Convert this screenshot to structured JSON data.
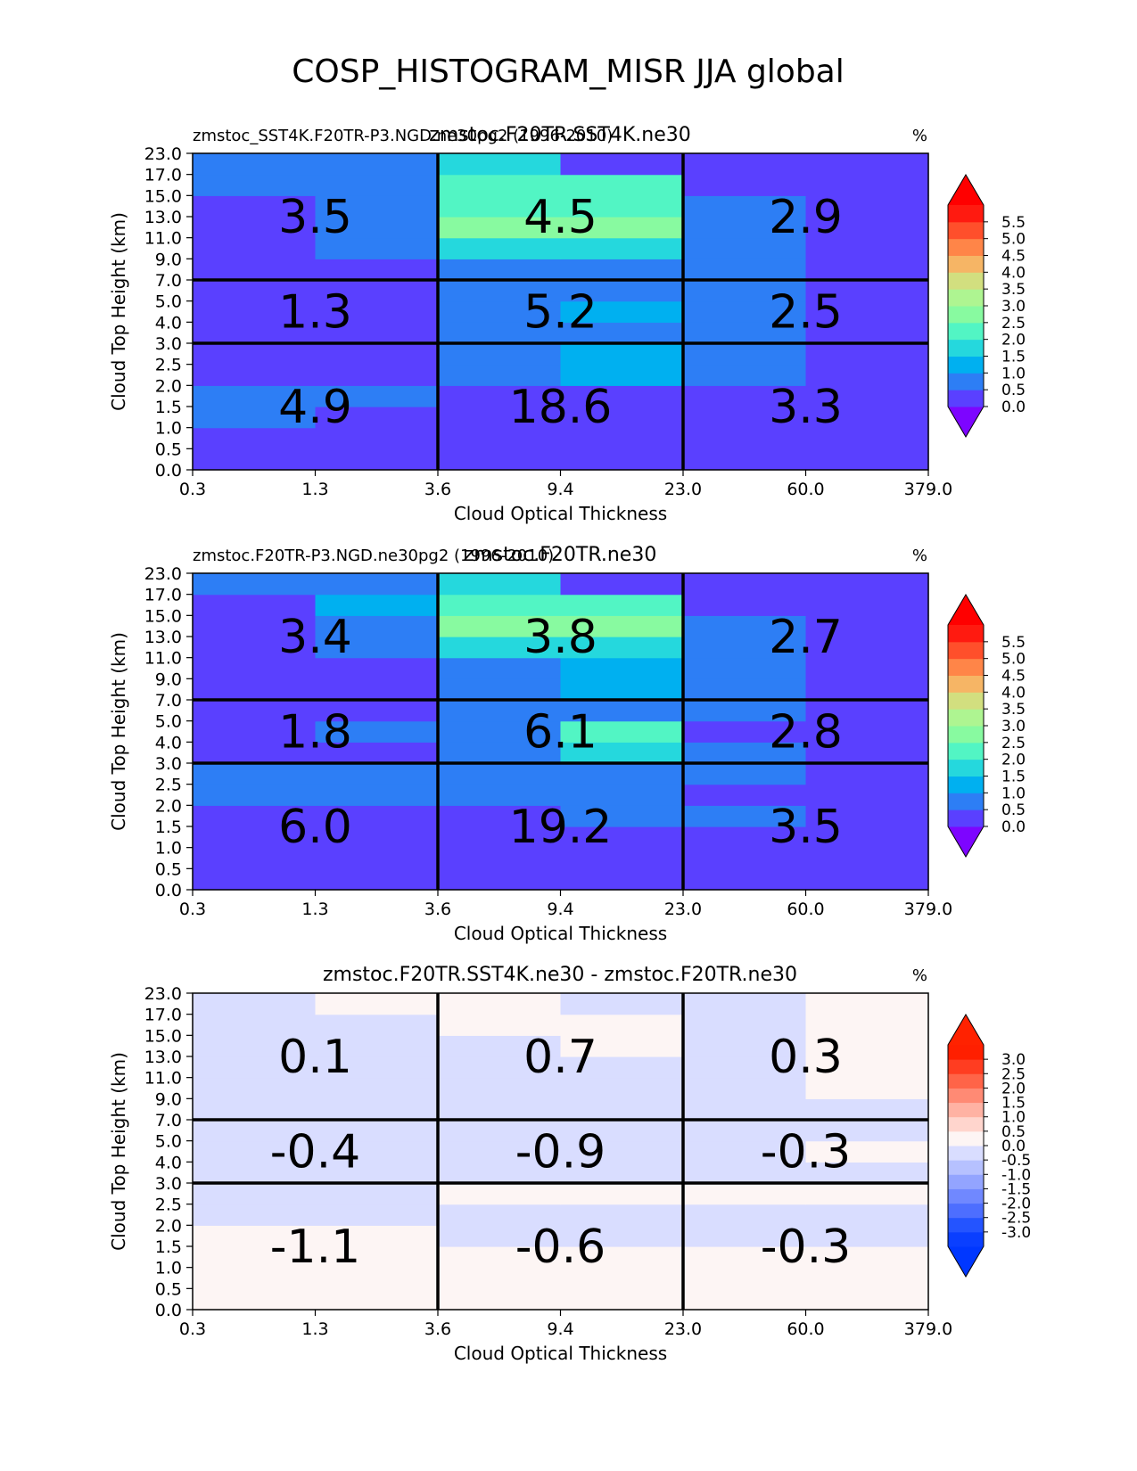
{
  "page_title": "COSP_HISTOGRAM_MISR JJA global",
  "panels": [
    {
      "left_title": "zmstoc_SST4K.F20TR-P3.NGD.ne30pg2 (1996-2010)",
      "center_title": "zmstoc.F20TR.SST4K.ne30",
      "units": "%",
      "xlabel": "Cloud Optical Thickness",
      "ylabel": "Cloud Top Height (km)",
      "colorbar": {
        "ticks": [
          "0.0",
          "0.5",
          "1.0",
          "1.5",
          "2.0",
          "2.5",
          "3.0",
          "3.5",
          "4.0",
          "4.5",
          "5.0",
          "5.5"
        ],
        "colors": [
          "#5a40ff",
          "#2d7ef5",
          "#00b0f0",
          "#25d8dd",
          "#52f5c4",
          "#88faa0",
          "#aef591",
          "#d2df7f",
          "#f6b565",
          "#ff8548",
          "#ff4f2b",
          "#ff1a10"
        ],
        "under_color": "#7d05ff",
        "over_color": "#ff0000"
      },
      "section_values": [
        [
          "3.5",
          "4.5",
          "2.9"
        ],
        [
          "1.3",
          "5.2",
          "2.5"
        ],
        [
          "4.9",
          "18.6",
          "3.3"
        ]
      ],
      "cells": [
        [
          "0.0",
          "0.0",
          "0.0",
          "0.0",
          "0.0",
          "0.0"
        ],
        [
          "0.0",
          "0.0",
          "0.0",
          "0.0",
          "0.0",
          "0.0"
        ],
        [
          "0.5",
          "0.0",
          "0.0",
          "0.0",
          "0.0",
          "0.0"
        ],
        [
          "0.5",
          "0.5",
          "0.0",
          "0.0",
          "0.0",
          "0.0"
        ],
        [
          "0.0",
          "0.0",
          "0.5",
          "1.0",
          "0.5",
          "0.0"
        ],
        [
          "0.0",
          "0.0",
          "0.5",
          "1.0",
          "0.5",
          "0.0"
        ],
        [
          "0.0",
          "0.0",
          "0.5",
          "0.5",
          "0.5",
          "0.0"
        ],
        [
          "0.0",
          "0.0",
          "0.5",
          "1.0",
          "0.5",
          "0.0"
        ],
        [
          "0.0",
          "0.0",
          "0.5",
          "0.5",
          "0.5",
          "0.0"
        ],
        [
          "0.0",
          "0.0",
          "0.5",
          "0.5",
          "0.5",
          "0.0"
        ],
        [
          "0.0",
          "0.5",
          "1.5",
          "1.5",
          "0.5",
          "0.0"
        ],
        [
          "0.0",
          "0.5",
          "2.5",
          "2.5",
          "0.5",
          "0.0"
        ],
        [
          "0.0",
          "0.5",
          "2.0",
          "2.0",
          "0.5",
          "0.0"
        ],
        [
          "0.5",
          "0.5",
          "2.0",
          "2.0",
          "0.0",
          "0.0"
        ],
        [
          "0.5",
          "0.5",
          "1.5",
          "0.0",
          "0.0",
          "0.0"
        ]
      ]
    },
    {
      "left_title": "zmstoc.F20TR-P3.NGD.ne30pg2 (1996-2010)",
      "center_title": "zmstoc.F20TR.ne30",
      "units": "%",
      "xlabel": "Cloud Optical Thickness",
      "ylabel": "Cloud Top Height (km)",
      "colorbar": {
        "ticks": [
          "0.0",
          "0.5",
          "1.0",
          "1.5",
          "2.0",
          "2.5",
          "3.0",
          "3.5",
          "4.0",
          "4.5",
          "5.0",
          "5.5"
        ],
        "colors": [
          "#5a40ff",
          "#2d7ef5",
          "#00b0f0",
          "#25d8dd",
          "#52f5c4",
          "#88faa0",
          "#aef591",
          "#d2df7f",
          "#f6b565",
          "#ff8548",
          "#ff4f2b",
          "#ff1a10"
        ],
        "under_color": "#7d05ff",
        "over_color": "#ff0000"
      },
      "section_values": [
        [
          "3.4",
          "3.8",
          "2.7"
        ],
        [
          "1.8",
          "6.1",
          "2.8"
        ],
        [
          "6.0",
          "19.2",
          "3.5"
        ]
      ],
      "cells": [
        [
          "0.0",
          "0.0",
          "0.0",
          "0.0",
          "0.0",
          "0.0"
        ],
        [
          "0.0",
          "0.0",
          "0.0",
          "0.0",
          "0.0",
          "0.0"
        ],
        [
          "0.0",
          "0.0",
          "0.0",
          "0.0",
          "0.0",
          "0.0"
        ],
        [
          "0.0",
          "0.0",
          "0.0",
          "0.5",
          "0.5",
          "0.0"
        ],
        [
          "0.5",
          "0.5",
          "0.5",
          "0.5",
          "0.0",
          "0.0"
        ],
        [
          "0.5",
          "0.5",
          "0.5",
          "0.5",
          "0.5",
          "0.0"
        ],
        [
          "0.0",
          "0.0",
          "0.5",
          "1.5",
          "0.5",
          "0.0"
        ],
        [
          "0.0",
          "0.5",
          "0.5",
          "2.0",
          "0.0",
          "0.0"
        ],
        [
          "0.0",
          "0.0",
          "0.5",
          "0.5",
          "0.5",
          "0.0"
        ],
        [
          "0.0",
          "0.0",
          "0.5",
          "1.0",
          "0.5",
          "0.0"
        ],
        [
          "0.0",
          "0.0",
          "0.5",
          "1.0",
          "0.5",
          "0.0"
        ],
        [
          "0.0",
          "0.5",
          "1.5",
          "1.5",
          "0.5",
          "0.0"
        ],
        [
          "0.0",
          "0.5",
          "2.5",
          "2.5",
          "0.5",
          "0.0"
        ],
        [
          "0.0",
          "1.0",
          "2.0",
          "2.0",
          "0.0",
          "0.0"
        ],
        [
          "0.5",
          "0.5",
          "1.5",
          "0.0",
          "0.0",
          "0.0"
        ]
      ]
    },
    {
      "left_title": "",
      "center_title": "zmstoc.F20TR.SST4K.ne30 - zmstoc.F20TR.ne30",
      "units": "%",
      "xlabel": "Cloud Optical Thickness",
      "ylabel": "Cloud Top Height (km)",
      "colorbar": {
        "ticks": [
          "-3.0",
          "-2.5",
          "-2.0",
          "-1.5",
          "-1.0",
          "-0.5",
          "0.0",
          "0.5",
          "1.0",
          "1.5",
          "2.0",
          "2.5",
          "3.0"
        ],
        "colors": [
          "#0a3fff",
          "#2454ff",
          "#4d6eff",
          "#7088ff",
          "#93a4ff",
          "#b6c1ff",
          "#d9ddff",
          "#fdf5f4",
          "#ffd5cd",
          "#ffb2a3",
          "#ff8a74",
          "#ff6448",
          "#ff3d21",
          "#ff1f00"
        ],
        "under_color": "#0037ff",
        "over_color": "#ff2200"
      },
      "section_values": [
        [
          "0.1",
          "0.7",
          "0.3"
        ],
        [
          "-0.4",
          "-0.9",
          "-0.3"
        ],
        [
          "-1.1",
          "-0.6",
          "-0.3"
        ]
      ],
      "cells": [
        [
          "0.1",
          "0.1",
          "0.1",
          "0.1",
          "0.1",
          "0.1"
        ],
        [
          "0.1",
          "0.1",
          "0.1",
          "0.1",
          "0.1",
          "0.1"
        ],
        [
          "0.1",
          "0.1",
          "0.1",
          "0.1",
          "0.1",
          "0.1"
        ],
        [
          "0.1",
          "0.1",
          "-0.1",
          "-0.1",
          "-0.1",
          "-0.1"
        ],
        [
          "-0.1",
          "-0.1",
          "-0.1",
          "-0.1",
          "-0.1",
          "-0.1"
        ],
        [
          "-0.1",
          "-0.1",
          "0.1",
          "0.1",
          "0.1",
          "0.1"
        ],
        [
          "-0.1",
          "-0.1",
          "-0.1",
          "-0.1",
          "-0.1",
          "-0.1"
        ],
        [
          "-0.1",
          "-0.1",
          "-0.1",
          "-0.1",
          "-0.1",
          "0.1"
        ],
        [
          "-0.1",
          "-0.1",
          "-0.1",
          "-0.1",
          "-0.1",
          "-0.1"
        ],
        [
          "-0.1",
          "-0.1",
          "-0.1",
          "-0.1",
          "-0.1",
          "-0.1"
        ],
        [
          "-0.1",
          "-0.1",
          "-0.1",
          "-0.1",
          "-0.1",
          "0.1"
        ],
        [
          "-0.1",
          "-0.1",
          "-0.1",
          "-0.1",
          "-0.1",
          "0.1"
        ],
        [
          "-0.1",
          "-0.1",
          "-0.1",
          "0.1",
          "-0.1",
          "0.1"
        ],
        [
          "-0.1",
          "-0.1",
          "0.1",
          "0.1",
          "-0.1",
          "0.1"
        ],
        [
          "-0.1",
          "0.1",
          "0.1",
          "-0.1",
          "-0.1",
          "0.1"
        ]
      ]
    }
  ],
  "chart_data": [
    {
      "type": "heatmap",
      "title": "zmstoc.F20TR.SST4K.ne30",
      "xlabel": "Cloud Optical Thickness",
      "ylabel": "Cloud Top Height (km)",
      "x_ticks": [
        "0.3",
        "1.3",
        "3.6",
        "9.4",
        "23.0",
        "60.0",
        "379.0"
      ],
      "y_ticks": [
        "0.0",
        "0.5",
        "1.0",
        "1.5",
        "2.0",
        "2.5",
        "3.0",
        "4.0",
        "5.0",
        "7.0",
        "9.0",
        "11.0",
        "13.0",
        "15.0",
        "17.0",
        "23.0"
      ],
      "units": "%",
      "section_totals": [
        [
          3.5,
          4.5,
          2.9
        ],
        [
          1.3,
          5.2,
          2.5
        ],
        [
          4.9,
          18.6,
          3.3
        ]
      ]
    },
    {
      "type": "heatmap",
      "title": "zmstoc.F20TR.ne30",
      "xlabel": "Cloud Optical Thickness",
      "ylabel": "Cloud Top Height (km)",
      "x_ticks": [
        "0.3",
        "1.3",
        "3.6",
        "9.4",
        "23.0",
        "60.0",
        "379.0"
      ],
      "y_ticks": [
        "0.0",
        "0.5",
        "1.0",
        "1.5",
        "2.0",
        "2.5",
        "3.0",
        "4.0",
        "5.0",
        "7.0",
        "9.0",
        "11.0",
        "13.0",
        "15.0",
        "17.0",
        "23.0"
      ],
      "units": "%",
      "section_totals": [
        [
          3.4,
          3.8,
          2.7
        ],
        [
          1.8,
          6.1,
          2.8
        ],
        [
          6.0,
          19.2,
          3.5
        ]
      ]
    },
    {
      "type": "heatmap",
      "title": "zmstoc.F20TR.SST4K.ne30 - zmstoc.F20TR.ne30",
      "xlabel": "Cloud Optical Thickness",
      "ylabel": "Cloud Top Height (km)",
      "x_ticks": [
        "0.3",
        "1.3",
        "3.6",
        "9.4",
        "23.0",
        "60.0",
        "379.0"
      ],
      "y_ticks": [
        "0.0",
        "0.5",
        "1.0",
        "1.5",
        "2.0",
        "2.5",
        "3.0",
        "4.0",
        "5.0",
        "7.0",
        "9.0",
        "11.0",
        "13.0",
        "15.0",
        "17.0",
        "23.0"
      ],
      "units": "%",
      "section_totals": [
        [
          0.1,
          0.7,
          0.3
        ],
        [
          -0.4,
          -0.9,
          -0.3
        ],
        [
          -1.1,
          -0.6,
          -0.3
        ]
      ]
    }
  ]
}
